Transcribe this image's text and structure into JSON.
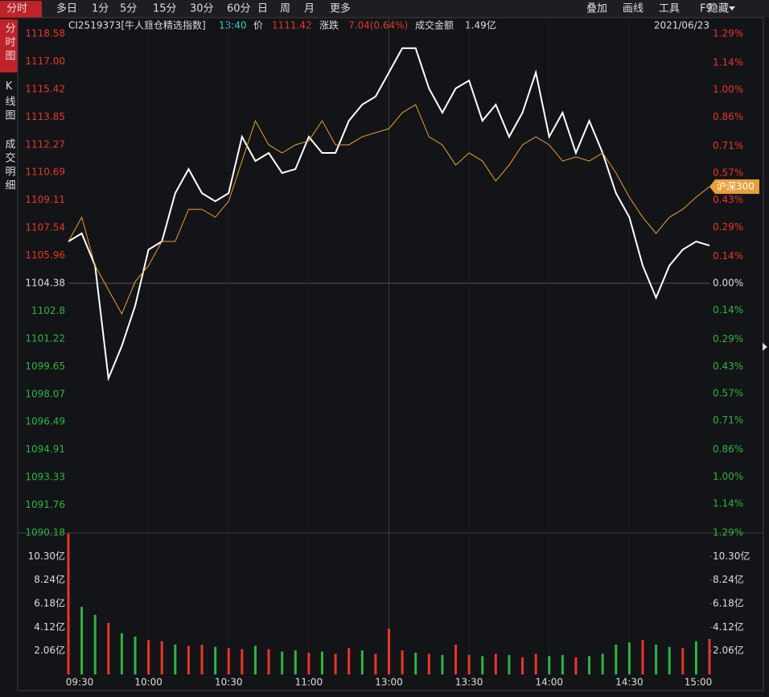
{
  "toolbar": {
    "tabs": [
      "分时",
      "多日",
      "1分",
      "5分",
      "15分",
      "30分",
      "60分",
      "日",
      "周",
      "月",
      "更多"
    ],
    "tools": [
      "叠加",
      "画线",
      "工具",
      "F9",
      "隐藏"
    ]
  },
  "side_tabs": [
    "分时图",
    "K线图",
    "成交明细"
  ],
  "info": {
    "name": "CI2519373[牛人重仓精选指数]",
    "time": "13:40",
    "price_label": "价",
    "price": "1111.42",
    "change_label": "涨跌",
    "change": "7.04(0.64%)",
    "amount_label": "成交金额",
    "amount": "1.49亿",
    "date": "2021/06/23"
  },
  "chart_data": {
    "type": "line",
    "x": [
      0,
      5,
      10,
      15,
      20,
      25,
      30,
      35,
      40,
      45,
      50,
      55,
      60,
      65,
      70,
      75,
      80,
      85,
      90,
      95,
      100,
      105,
      110,
      115,
      120,
      125,
      130,
      135,
      140,
      145,
      150,
      155,
      160,
      165,
      170,
      175,
      180,
      185,
      190,
      195,
      200,
      205,
      210,
      215,
      220,
      225,
      230,
      235,
      240
    ],
    "xlim": [
      0,
      240
    ],
    "xticks": [
      {
        "value": 0,
        "label": "09:30"
      },
      {
        "value": 30,
        "label": "10:00"
      },
      {
        "value": 60,
        "label": "10:30"
      },
      {
        "value": 90,
        "label": "11:00"
      },
      {
        "value": 120,
        "label": "13:00"
      },
      {
        "value": 150,
        "label": "13:30"
      },
      {
        "value": 180,
        "label": "14:00"
      },
      {
        "value": 210,
        "label": "14:30"
      },
      {
        "value": 240,
        "label": "15:00"
      }
    ],
    "ylim": [
      1090.18,
      1118.58
    ],
    "yticks": [
      1118.58,
      {
        "value": 1117,
        "label": "1117.00"
      },
      1115.42,
      1113.85,
      1112.27,
      1110.69,
      1109.11,
      1107.54,
      1105.96,
      1104.38,
      1102.8,
      1101.22,
      1099.65,
      1098.07,
      1096.49,
      1094.91,
      1093.33,
      1091.76,
      1090.18
    ],
    "y2lim": [
      -1.29,
      1.29
    ],
    "y2ticks": [
      {
        "value": 1.29,
        "label": "1.29%"
      },
      {
        "value": 1.14,
        "label": "1.14%"
      },
      {
        "value": 1,
        "label": "1.00%"
      },
      {
        "value": 0.86,
        "label": "0.86%"
      },
      {
        "value": 0.71,
        "label": "0.71%"
      },
      {
        "value": 0.57,
        "label": "0.57%"
      },
      {
        "value": 0.43,
        "label": "0.43%"
      },
      {
        "value": 0.29,
        "label": "0.29%"
      },
      {
        "value": 0.14,
        "label": "0.14%"
      },
      {
        "value": 0,
        "label": "0.00%"
      },
      {
        "value": -0.14,
        "label": "0.14%"
      },
      {
        "value": -0.29,
        "label": "0.29%"
      },
      {
        "value": -0.43,
        "label": "0.43%"
      },
      {
        "value": -0.57,
        "label": "0.57%"
      },
      {
        "value": -0.71,
        "label": "0.71%"
      },
      {
        "value": -0.86,
        "label": "0.86%"
      },
      {
        "value": -1,
        "label": "1.00%"
      },
      {
        "value": -1.14,
        "label": "1.14%"
      },
      {
        "value": -1.29,
        "label": "1.29%"
      }
    ],
    "series": [
      {
        "color": "#ffffff",
        "values": [
          1106.76,
          1107.22,
          1105.39,
          1098.97,
          1100.81,
          1103.1,
          1106.3,
          1106.76,
          1109.51,
          1110.88,
          1109.51,
          1109.05,
          1109.51,
          1112.72,
          1111.34,
          1111.8,
          1110.66,
          1110.88,
          1112.72,
          1111.8,
          1111.8,
          1113.63,
          1114.55,
          1115.01,
          1116.38,
          1117.76,
          1117.76,
          1115.47,
          1114.09,
          1115.47,
          1115.92,
          1113.63,
          1114.55,
          1112.72,
          1114.09,
          1116.38,
          1112.72,
          1114.09,
          1111.8,
          1113.63,
          1111.8,
          1109.51,
          1108.14,
          1105.39,
          1103.56,
          1105.39,
          1106.3,
          1106.76,
          1106.53
        ]
      },
      {
        "name": "沪深300",
        "color": "#e8a03a",
        "values": [
          1106.76,
          1108.14,
          1105.39,
          1104.01,
          1102.64,
          1104.47,
          1105.39,
          1106.76,
          1106.76,
          1108.59,
          1108.59,
          1108.14,
          1109.05,
          1111.34,
          1113.63,
          1112.26,
          1111.8,
          1112.26,
          1112.49,
          1113.63,
          1112.26,
          1112.26,
          1112.72,
          1112.95,
          1113.18,
          1114.09,
          1114.55,
          1112.72,
          1112.26,
          1111.11,
          1111.8,
          1111.34,
          1110.2,
          1111.11,
          1112.26,
          1112.72,
          1112.26,
          1111.34,
          1111.57,
          1111.34,
          1111.8,
          1110.66,
          1109.28,
          1108.14,
          1107.22,
          1108.14,
          1108.59,
          1109.28,
          1109.88
        ]
      }
    ],
    "volume": {
      "vlim": [
        0,
        12.36
      ],
      "vticks": [
        {
          "value": 10.3,
          "label": "10.30亿"
        },
        {
          "value": 8.24,
          "label": "8.24亿"
        },
        {
          "value": 6.18,
          "label": "6.18亿"
        },
        {
          "value": 4.12,
          "label": "4.12亿"
        },
        {
          "value": 2.06,
          "label": "2.06亿"
        }
      ],
      "values": [
        12.3,
        5.9,
        5.2,
        4.5,
        3.6,
        3.3,
        3,
        2.9,
        2.6,
        2.5,
        2.6,
        2.4,
        2.3,
        2.2,
        2.5,
        2.2,
        2,
        2.1,
        1.9,
        2,
        1.8,
        2.3,
        2.1,
        1.8,
        4,
        2.1,
        1.9,
        1.8,
        1.7,
        2.6,
        1.7,
        1.6,
        1.8,
        1.7,
        1.5,
        1.8,
        1.6,
        1.7,
        1.5,
        1.6,
        1.8,
        2.6,
        2.8,
        3,
        2.6,
        2.4,
        2.3,
        2.9,
        3.1
      ],
      "colors": [
        "#e8352c",
        "#2fb344",
        "#2fb344",
        "#e8352c",
        "#2fb344",
        "#2fb344",
        "#e8352c",
        "#e8352c",
        "#2fb344",
        "#e8352c",
        "#e8352c",
        "#2fb344",
        "#e8352c",
        "#e8352c",
        "#2fb344",
        "#e8352c",
        "#2fb344",
        "#2fb344",
        "#e8352c",
        "#2fb344",
        "#e8352c",
        "#e8352c",
        "#2fb344",
        "#e8352c",
        "#e8352c",
        "#e8352c",
        "#2fb344",
        "#e8352c",
        "#2fb344",
        "#e8352c",
        "#e8352c",
        "#2fb344",
        "#e8352c",
        "#2fb344",
        "#e8352c",
        "#e8352c",
        "#2fb344",
        "#2fb344",
        "#e8352c",
        "#2fb344",
        "#2fb344",
        "#2fb344",
        "#2fb344",
        "#e8352c",
        "#2fb344",
        "#2fb344",
        "#e8352c",
        "#2fb344",
        "#e8352c"
      ]
    }
  }
}
